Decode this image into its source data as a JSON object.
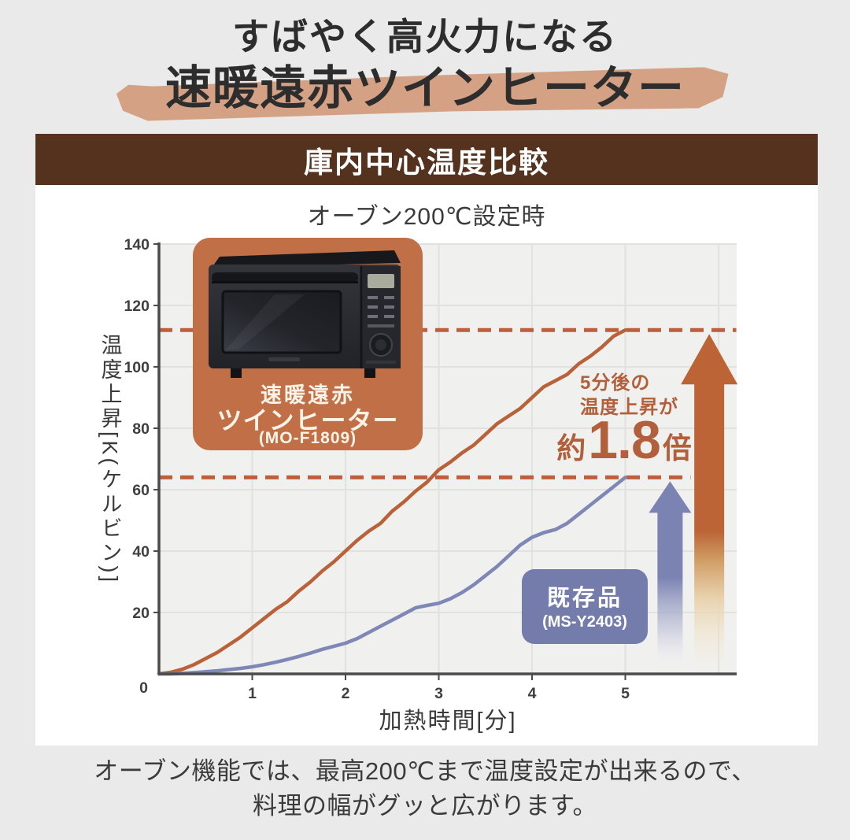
{
  "header": {
    "title_line1": "すばやく高火力になる",
    "title_line2": "速暖遠赤ツインヒーター",
    "brush_color": "#d5a184"
  },
  "panel": {
    "bar_title": "庫内中心温度比較",
    "bar_bg": "#54321e",
    "subtitle": "オーブン200℃設定時"
  },
  "chart_data": {
    "type": "line",
    "title": "庫内中心温度比較",
    "condition": "オーブン200℃設定時",
    "xlabel": "加熱時間[分]",
    "ylabel": "温度上昇[K(ケルビン)]",
    "xlim": [
      0,
      6.2
    ],
    "ylim": [
      0,
      140
    ],
    "x_ticks": [
      0,
      1,
      2,
      3,
      4,
      5
    ],
    "y_ticks": [
      0,
      20,
      40,
      60,
      80,
      100,
      120,
      140
    ],
    "grid": true,
    "plot_bg": "#f0f0ee",
    "grid_color": "#e1e1df",
    "axis_color": "#4a4a4a",
    "reference_lines": [
      {
        "value": 112,
        "x_end": 6.19,
        "color": "#bd5f3d"
      },
      {
        "value": 64,
        "x_end": 5.7,
        "color": "#bd5f3d"
      }
    ],
    "series": [
      {
        "name": "速暖遠赤ツインヒーター",
        "model": "(MO-F1809)",
        "color": "#b96239",
        "final_value_K": 112,
        "points": [
          [
            0,
            0
          ],
          [
            0.125,
            0.5
          ],
          [
            0.25,
            1.5
          ],
          [
            0.375,
            3
          ],
          [
            0.5,
            5
          ],
          [
            0.625,
            7
          ],
          [
            0.75,
            9.5
          ],
          [
            0.875,
            12
          ],
          [
            1,
            15
          ],
          [
            1.125,
            18
          ],
          [
            1.25,
            21
          ],
          [
            1.375,
            23.5
          ],
          [
            1.5,
            27
          ],
          [
            1.625,
            30
          ],
          [
            1.75,
            33.5
          ],
          [
            1.875,
            36.5
          ],
          [
            2,
            40
          ],
          [
            2.125,
            43.5
          ],
          [
            2.25,
            46.5
          ],
          [
            2.375,
            49
          ],
          [
            2.5,
            53
          ],
          [
            2.625,
            56
          ],
          [
            2.75,
            59.5
          ],
          [
            2.875,
            62.5
          ],
          [
            3,
            66.5
          ],
          [
            3.125,
            69
          ],
          [
            3.25,
            72
          ],
          [
            3.375,
            74.5
          ],
          [
            3.5,
            78
          ],
          [
            3.625,
            81.5
          ],
          [
            3.75,
            84
          ],
          [
            3.875,
            86.5
          ],
          [
            4,
            90
          ],
          [
            4.125,
            93.5
          ],
          [
            4.25,
            95.5
          ],
          [
            4.375,
            97.5
          ],
          [
            4.5,
            101
          ],
          [
            4.625,
            103.5
          ],
          [
            4.75,
            106.5
          ],
          [
            4.875,
            110
          ],
          [
            5,
            112
          ]
        ]
      },
      {
        "name": "既存品",
        "model": "(MS-Y2403)",
        "color": "#7e87b5",
        "final_value_K": 64,
        "points": [
          [
            0,
            0
          ],
          [
            0.125,
            0
          ],
          [
            0.25,
            0.2
          ],
          [
            0.375,
            0.4
          ],
          [
            0.5,
            0.7
          ],
          [
            0.625,
            1
          ],
          [
            0.75,
            1.4
          ],
          [
            0.875,
            1.8
          ],
          [
            1,
            2.3
          ],
          [
            1.125,
            3
          ],
          [
            1.25,
            3.8
          ],
          [
            1.375,
            4.7
          ],
          [
            1.5,
            5.7
          ],
          [
            1.625,
            6.8
          ],
          [
            1.75,
            8
          ],
          [
            1.875,
            9
          ],
          [
            2,
            10
          ],
          [
            2.125,
            11.5
          ],
          [
            2.25,
            13.5
          ],
          [
            2.375,
            15.5
          ],
          [
            2.5,
            17.5
          ],
          [
            2.625,
            19.5
          ],
          [
            2.75,
            21.5
          ],
          [
            2.875,
            22.3
          ],
          [
            3,
            23
          ],
          [
            3.125,
            24.5
          ],
          [
            3.25,
            26.5
          ],
          [
            3.375,
            29
          ],
          [
            3.5,
            32
          ],
          [
            3.625,
            35
          ],
          [
            3.75,
            38.5
          ],
          [
            3.875,
            42
          ],
          [
            4,
            44.5
          ],
          [
            4.125,
            46
          ],
          [
            4.25,
            47
          ],
          [
            4.375,
            49
          ],
          [
            4.5,
            52
          ],
          [
            4.625,
            55
          ],
          [
            4.75,
            58
          ],
          [
            4.875,
            61
          ],
          [
            5,
            64
          ]
        ]
      }
    ],
    "arrows": [
      {
        "value": 64,
        "x": 5.48,
        "style": "blue",
        "color": "#7b83b2"
      },
      {
        "value": 112,
        "x": 5.9,
        "style": "orange",
        "color": "#bc6436"
      }
    ],
    "legend_position": "on-chart-labels"
  },
  "labels": {
    "product": {
      "name1": "速暖遠赤",
      "name2": "ツインヒーター",
      "model": "(MO-F1809)"
    },
    "existing": {
      "name": "既存品",
      "model": "(MS-Y2403)"
    }
  },
  "annotation": {
    "line1": "5分後の",
    "line2": "温度上昇が",
    "prefix": "約",
    "value": "1.8",
    "suffix": "倍"
  },
  "footer": {
    "caption_line1": "オーブン機能では、最高200℃まで温度設定が出来るので、",
    "caption_line2": "料理の幅がグッと広がります。"
  }
}
